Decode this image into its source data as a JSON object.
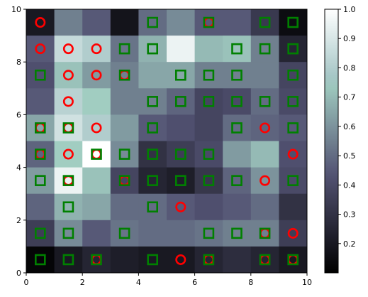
{
  "chart_data": {
    "type": "heatmap",
    "title": "",
    "xlabel": "",
    "ylabel": "",
    "xlim": [
      0,
      10
    ],
    "ylim": [
      0,
      10
    ],
    "x_ticks": [
      "0",
      "2",
      "4",
      "6",
      "8",
      "10"
    ],
    "y_ticks": [
      "0",
      "2",
      "4",
      "6",
      "8",
      "10"
    ],
    "colormap": "bone",
    "colorbar": {
      "range": [
        0.1,
        1.0
      ],
      "ticks": [
        "0.2",
        "0.3",
        "0.4",
        "0.5",
        "0.6",
        "0.7",
        "0.8",
        "0.9",
        "1.0"
      ]
    },
    "grid_rows_top_to_bottom": [
      [
        0.2,
        0.55,
        0.45,
        0.18,
        0.5,
        0.58,
        0.45,
        0.45,
        0.33,
        0.15
      ],
      [
        0.45,
        0.85,
        0.8,
        0.52,
        0.68,
        0.95,
        0.7,
        0.72,
        0.55,
        0.25
      ],
      [
        0.42,
        0.72,
        0.62,
        0.55,
        0.65,
        0.65,
        0.55,
        0.55,
        0.55,
        0.38
      ],
      [
        0.45,
        0.82,
        0.75,
        0.55,
        0.55,
        0.48,
        0.38,
        0.4,
        0.5,
        0.4
      ],
      [
        0.65,
        0.88,
        0.8,
        0.62,
        0.45,
        0.42,
        0.38,
        0.5,
        0.48,
        0.45
      ],
      [
        0.48,
        0.75,
        1.0,
        0.58,
        0.3,
        0.35,
        0.4,
        0.62,
        0.7,
        0.42
      ],
      [
        0.62,
        0.95,
        0.72,
        0.38,
        0.25,
        0.22,
        0.32,
        0.48,
        0.6,
        0.4
      ],
      [
        0.48,
        0.68,
        0.65,
        0.5,
        0.5,
        0.45,
        0.42,
        0.45,
        0.5,
        0.3
      ],
      [
        0.35,
        0.58,
        0.45,
        0.52,
        0.5,
        0.5,
        0.52,
        0.55,
        0.55,
        0.35
      ],
      [
        0.12,
        0.2,
        0.25,
        0.22,
        0.2,
        0.2,
        0.25,
        0.28,
        0.25,
        0.2
      ]
    ],
    "series": [
      {
        "marker": "circle",
        "color": "#ff0000",
        "points": [
          [
            0.5,
            9.5
          ],
          [
            6.5,
            9.5
          ],
          [
            0.5,
            8.5
          ],
          [
            1.5,
            8.5
          ],
          [
            2.5,
            8.5
          ],
          [
            1.5,
            7.5
          ],
          [
            2.5,
            7.5
          ],
          [
            3.5,
            7.5
          ],
          [
            1.5,
            6.5
          ],
          [
            0.5,
            5.5
          ],
          [
            1.5,
            5.5
          ],
          [
            2.5,
            5.5
          ],
          [
            8.5,
            5.5
          ],
          [
            0.5,
            4.5
          ],
          [
            1.5,
            4.5
          ],
          [
            2.5,
            4.5
          ],
          [
            9.5,
            4.5
          ],
          [
            1.5,
            3.5
          ],
          [
            3.5,
            3.5
          ],
          [
            8.5,
            3.5
          ],
          [
            5.5,
            2.5
          ],
          [
            8.5,
            1.5
          ],
          [
            9.5,
            1.5
          ],
          [
            2.5,
            0.5
          ],
          [
            5.5,
            0.5
          ],
          [
            6.5,
            0.5
          ],
          [
            8.5,
            0.5
          ],
          [
            9.5,
            0.5
          ]
        ]
      },
      {
        "marker": "square",
        "color": "#008000",
        "points": [
          [
            4.5,
            9.5
          ],
          [
            6.5,
            9.5
          ],
          [
            8.5,
            9.5
          ],
          [
            9.5,
            9.5
          ],
          [
            3.5,
            8.5
          ],
          [
            4.5,
            8.5
          ],
          [
            7.5,
            8.5
          ],
          [
            8.5,
            8.5
          ],
          [
            9.5,
            8.5
          ],
          [
            0.5,
            7.5
          ],
          [
            3.5,
            7.5
          ],
          [
            5.5,
            7.5
          ],
          [
            6.5,
            7.5
          ],
          [
            7.5,
            7.5
          ],
          [
            9.5,
            7.5
          ],
          [
            4.5,
            6.5
          ],
          [
            5.5,
            6.5
          ],
          [
            6.5,
            6.5
          ],
          [
            7.5,
            6.5
          ],
          [
            8.5,
            6.5
          ],
          [
            9.5,
            6.5
          ],
          [
            0.5,
            5.5
          ],
          [
            1.5,
            5.5
          ],
          [
            4.5,
            5.5
          ],
          [
            7.5,
            5.5
          ],
          [
            9.5,
            5.5
          ],
          [
            0.5,
            4.5
          ],
          [
            2.5,
            4.5
          ],
          [
            3.5,
            4.5
          ],
          [
            4.5,
            4.5
          ],
          [
            5.5,
            4.5
          ],
          [
            6.5,
            4.5
          ],
          [
            0.5,
            3.5
          ],
          [
            1.5,
            3.5
          ],
          [
            3.5,
            3.5
          ],
          [
            4.5,
            3.5
          ],
          [
            5.5,
            3.5
          ],
          [
            6.5,
            3.5
          ],
          [
            7.5,
            3.5
          ],
          [
            9.5,
            3.5
          ],
          [
            1.5,
            2.5
          ],
          [
            4.5,
            2.5
          ],
          [
            0.5,
            1.5
          ],
          [
            1.5,
            1.5
          ],
          [
            3.5,
            1.5
          ],
          [
            6.5,
            1.5
          ],
          [
            7.5,
            1.5
          ],
          [
            8.5,
            1.5
          ],
          [
            0.5,
            0.5
          ],
          [
            1.5,
            0.5
          ],
          [
            2.5,
            0.5
          ],
          [
            4.5,
            0.5
          ],
          [
            6.5,
            0.5
          ],
          [
            8.5,
            0.5
          ],
          [
            9.5,
            0.5
          ]
        ]
      }
    ]
  }
}
